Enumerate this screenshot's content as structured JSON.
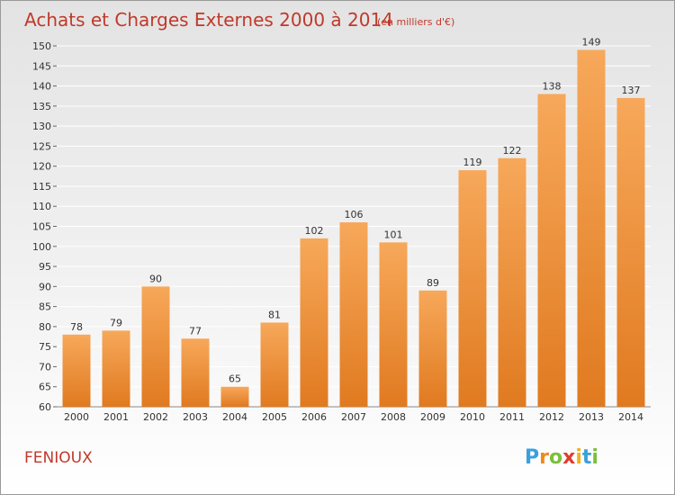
{
  "chart_data": {
    "type": "bar",
    "title": "Achats et Charges Externes 2000 à 2014",
    "subtitle": "(en milliers d'€)",
    "categories": [
      "2000",
      "2001",
      "2002",
      "2003",
      "2004",
      "2005",
      "2006",
      "2007",
      "2008",
      "2009",
      "2010",
      "2011",
      "2012",
      "2013",
      "2014"
    ],
    "values": [
      78,
      79,
      90,
      77,
      65,
      81,
      102,
      106,
      101,
      89,
      119,
      122,
      138,
      149,
      137
    ],
    "ylim": [
      60,
      150
    ],
    "yticks": [
      60,
      65,
      70,
      75,
      80,
      85,
      90,
      95,
      100,
      105,
      110,
      115,
      120,
      125,
      130,
      135,
      140,
      145,
      150
    ],
    "grid": true,
    "legend": "none",
    "colors": {
      "bar_top": "#f7a85a",
      "bar_bottom": "#e07a20",
      "grid": "#ffffff",
      "title": "#c0392b"
    }
  },
  "footer": {
    "town": "FENIOUX",
    "logo": {
      "letters": [
        "P",
        "r",
        "o",
        "x",
        "i",
        "t",
        "i"
      ],
      "colors": [
        "#3aa0dc",
        "#f08a1c",
        "#7cbf3c",
        "#e23b2e",
        "#f0b21c",
        "#3aa0dc",
        "#7cbf3c"
      ]
    }
  }
}
